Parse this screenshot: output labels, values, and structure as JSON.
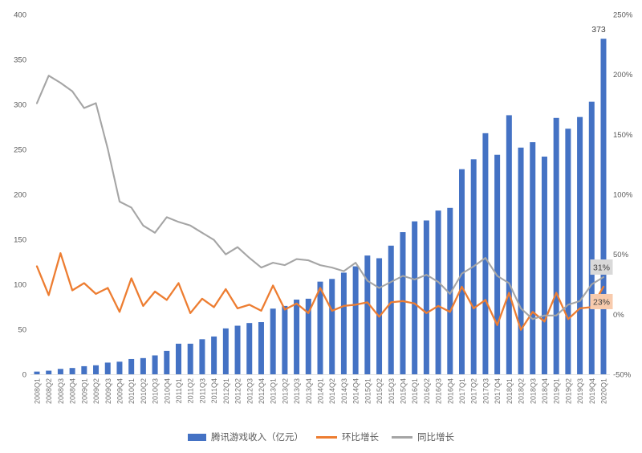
{
  "chart_data": {
    "type": "bar",
    "title": "",
    "xlabel": "",
    "ylabel": "",
    "grid": false,
    "legend_position": "bottom",
    "categories": [
      "2008Q1",
      "2008Q2",
      "2008Q3",
      "2008Q4",
      "2009Q1",
      "2009Q2",
      "2009Q3",
      "2009Q4",
      "2010Q1",
      "2010Q2",
      "2010Q3",
      "2010Q4",
      "2011Q1",
      "2011Q2",
      "2011Q3",
      "2011Q4",
      "2012Q1",
      "2012Q2",
      "2012Q3",
      "2012Q4",
      "2013Q1",
      "2013Q2",
      "2013Q3",
      "2013Q4",
      "2014Q1",
      "2014Q2",
      "2014Q3",
      "2014Q4",
      "2015Q1",
      "2015Q2",
      "2015Q3",
      "2015Q4",
      "2016Q1",
      "2016Q2",
      "2016Q3",
      "2016Q4",
      "2017Q1",
      "2017Q2",
      "2017Q3",
      "2017Q4",
      "2018Q1",
      "2018Q2",
      "2018Q3",
      "2018Q4",
      "2019Q1",
      "2019Q2",
      "2019Q3",
      "2019Q4",
      "2020Q1"
    ],
    "series": [
      {
        "name": "腾讯游戏收入（亿元）",
        "type": "bar",
        "axis": "left",
        "color": "#4472c4",
        "values": [
          3,
          4,
          6,
          7,
          9,
          10,
          13,
          14,
          17,
          18,
          21,
          26,
          34,
          34,
          39,
          42,
          51,
          54,
          57,
          58,
          73,
          76,
          83,
          84,
          103,
          106,
          113,
          120,
          132,
          129,
          143,
          158,
          170,
          171,
          182,
          185,
          228,
          239,
          268,
          244,
          288,
          252,
          258,
          242,
          285,
          273,
          286,
          303,
          373
        ]
      },
      {
        "name": "环比增长",
        "type": "line",
        "axis": "right",
        "unit": "%",
        "color": "#ed7d31",
        "values": [
          40,
          16,
          51,
          20,
          26,
          17,
          22,
          2,
          30,
          7,
          19,
          12,
          26,
          1,
          13,
          6,
          21,
          5,
          8,
          3,
          24,
          4,
          9,
          1,
          22,
          3,
          7,
          8,
          10,
          -2,
          10,
          11,
          9,
          1,
          7,
          2,
          23,
          5,
          12,
          -9,
          18,
          -13,
          2,
          -6,
          18,
          -4,
          5,
          6,
          23
        ]
      },
      {
        "name": "同比增长",
        "type": "line",
        "axis": "right",
        "unit": "%",
        "color": "#a5a5a5",
        "values": [
          176,
          199,
          193,
          186,
          172,
          176,
          138,
          94,
          89,
          74,
          68,
          81,
          77,
          74,
          68,
          62,
          50,
          56,
          47,
          39,
          43,
          41,
          46,
          45,
          41,
          39,
          36,
          43,
          28,
          22,
          27,
          32,
          29,
          33,
          27,
          17,
          34,
          40,
          47,
          32,
          26,
          5,
          -4,
          -1,
          -1,
          8,
          11,
          25,
          31
        ]
      }
    ],
    "left_axis": {
      "range": [
        0,
        400
      ],
      "ticks": [
        "0",
        "50",
        "100",
        "150",
        "200",
        "250",
        "300",
        "350",
        "400"
      ]
    },
    "right_axis": {
      "range": [
        -50,
        250
      ],
      "ticks": [
        "-50%",
        "0%",
        "50%",
        "100%",
        "150%",
        "200%",
        "250%"
      ]
    },
    "annotations": [
      {
        "text": "373",
        "kind": "value-label",
        "series": "腾讯游戏收入（亿元）",
        "point": "2020Q1",
        "color": "#404040",
        "bg": "none"
      },
      {
        "text": "31%",
        "kind": "callout",
        "series": "同比增长",
        "point": "2020Q1",
        "color": "#404040",
        "bg": "#d9d9d9"
      },
      {
        "text": "23%",
        "kind": "callout",
        "series": "环比增长",
        "point": "2020Q1",
        "color": "#404040",
        "bg": "#f8cbad"
      }
    ],
    "colors": {
      "bar": "#4472c4",
      "qoq_line": "#ed7d31",
      "yoy_line": "#a5a5a5",
      "axis_text": "#595959",
      "tick_text": "#737373"
    }
  }
}
